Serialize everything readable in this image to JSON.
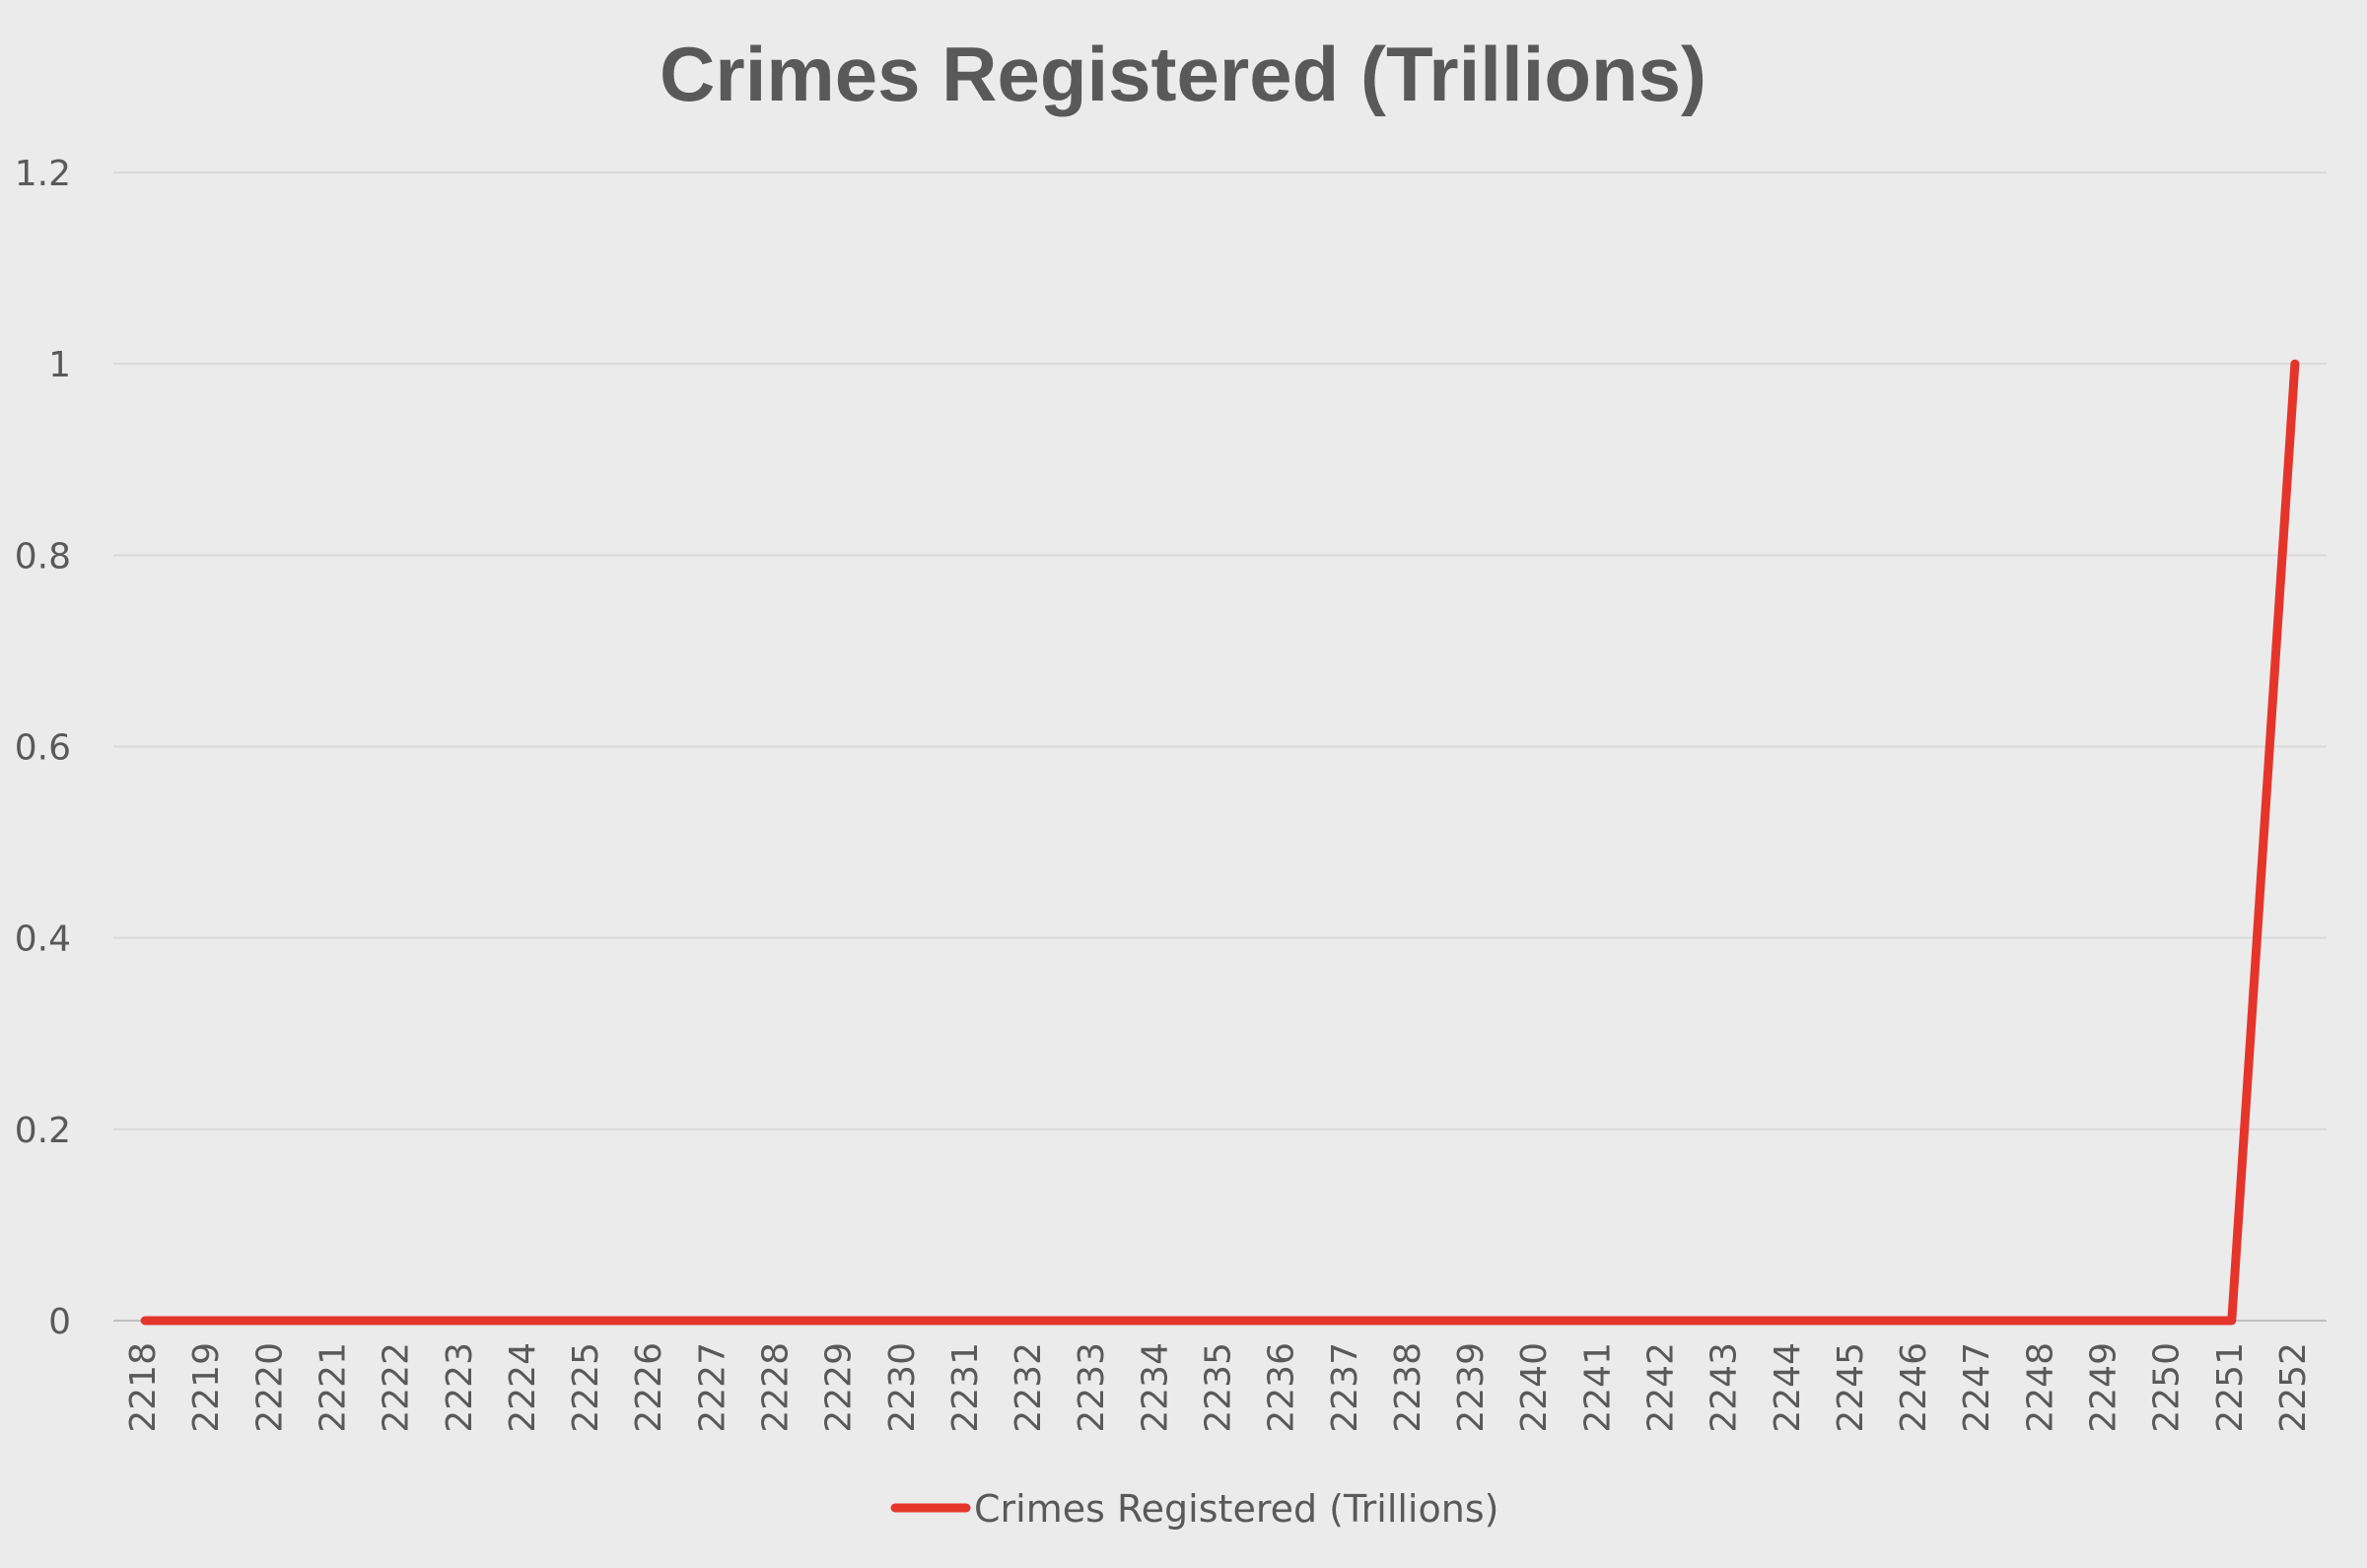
{
  "chart_data": {
    "type": "line",
    "title": "Crimes Registered (Trillions)",
    "xlabel": "",
    "ylabel": "",
    "categories": [
      "2218",
      "2219",
      "2220",
      "2221",
      "2222",
      "2223",
      "2224",
      "2225",
      "2226",
      "2227",
      "2228",
      "2229",
      "2230",
      "2231",
      "2232",
      "2233",
      "2234",
      "2235",
      "2236",
      "2237",
      "2238",
      "2239",
      "2240",
      "2241",
      "2242",
      "2243",
      "2244",
      "2245",
      "2246",
      "2247",
      "2248",
      "2249",
      "2250",
      "2251",
      "2252"
    ],
    "series": [
      {
        "name": "Crimes Registered (Trillions)",
        "color": "#e5352b",
        "values": [
          0,
          0,
          0,
          0,
          0,
          0,
          0,
          0,
          0,
          0,
          0,
          0,
          0,
          0,
          0,
          0,
          0,
          0,
          0,
          0,
          0,
          0,
          0,
          0,
          0,
          0,
          0,
          0,
          0,
          0,
          0,
          0,
          0,
          0,
          1
        ]
      }
    ],
    "ylim": [
      0,
      1.2
    ],
    "yticks": [
      "0",
      "0.2",
      "0.4",
      "0.6",
      "0.8",
      "1",
      "1.2"
    ],
    "grid": true,
    "legend_position": "bottom"
  }
}
